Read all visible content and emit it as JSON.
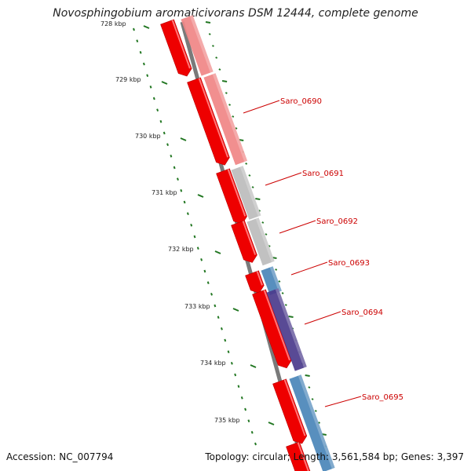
{
  "title": "Novosphingobium aromaticivorans DSM 12444, complete genome",
  "footer": {
    "accession": "Accession: NC_007794",
    "summary": "Topology: circular; Length: 3,561,584 bp; Genes: 3,397"
  },
  "colors": {
    "backbone": "#7a7a7a",
    "cds": "#ee0000",
    "tick": "#227722",
    "label": "#cc0000"
  },
  "ticks": [
    "728 kbp",
    "729 kbp",
    "730 kbp",
    "731 kbp",
    "732 kbp",
    "733 kbp",
    "734 kbp",
    "735 kbp"
  ],
  "genes": [
    {
      "label": "Saro_0690",
      "color": "#f08585"
    },
    {
      "label": "Saro_0691",
      "color": "#bcbcbc"
    },
    {
      "label": "Saro_0692",
      "color": "#bcbcbc"
    },
    {
      "label": "Saro_0693",
      "color": "#4a86b8"
    },
    {
      "label": "Saro_0694",
      "color": "#4b3b8c"
    },
    {
      "label": "Saro_0695",
      "color": "#4a86b8"
    }
  ]
}
